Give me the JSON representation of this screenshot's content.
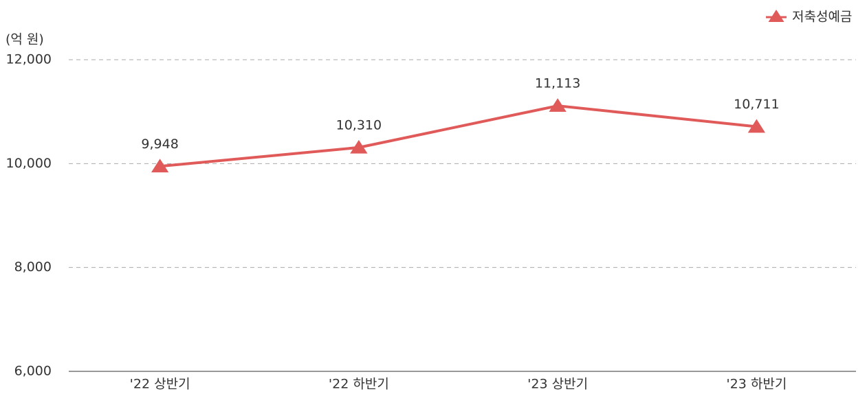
{
  "chart_data": {
    "type": "line",
    "y_axis_label": "(억 원)",
    "categories": [
      "'22 상반기",
      "'22 하반기",
      "'23 상반기",
      "'23 하반기"
    ],
    "series": [
      {
        "name": "저축성예금",
        "color": "#e05a5a",
        "values": [
          9948,
          10310,
          11113,
          10711
        ],
        "value_labels": [
          "9,948",
          "10,310",
          "11,113",
          "10,711"
        ]
      }
    ],
    "ylim": [
      6000,
      12000
    ],
    "yticks": [
      {
        "value": 6000,
        "label": "6,000"
      },
      {
        "value": 8000,
        "label": "8,000"
      },
      {
        "value": 10000,
        "label": "10,000"
      },
      {
        "value": 12000,
        "label": "12,000"
      }
    ],
    "grid": true,
    "legend": "top-right"
  }
}
